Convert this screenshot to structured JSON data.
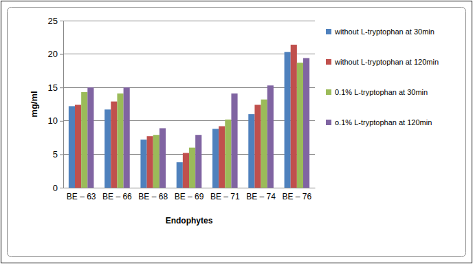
{
  "chart_data": {
    "type": "bar",
    "x_label": "Endophytes",
    "y_label": "mg/ml",
    "categories": [
      "BE – 63",
      "BE – 66",
      "BE – 68",
      "BE – 69",
      "BE – 71",
      "BE – 74",
      "BE – 76"
    ],
    "series": [
      {
        "name": "without L-tryptophan at 30min",
        "color": "#4f81bd",
        "values": [
          12.2,
          11.7,
          7.2,
          3.8,
          8.8,
          11.0,
          20.3
        ]
      },
      {
        "name": "without L-tryptophan at 120min",
        "color": "#c0504d",
        "values": [
          12.4,
          12.9,
          7.7,
          5.2,
          9.2,
          12.4,
          21.4
        ]
      },
      {
        "name": "0.1% L-tryptophan at 30min",
        "color": "#9bbb59",
        "values": [
          14.3,
          14.1,
          7.9,
          6.0,
          10.2,
          13.2,
          18.7
        ]
      },
      {
        "name": "o.1% L-tryptophan at 120min",
        "color": "#8064a2",
        "values": [
          15.0,
          15.0,
          8.9,
          7.9,
          14.1,
          15.3,
          19.4
        ]
      }
    ],
    "ylim": [
      0,
      25
    ],
    "yticks": [
      0,
      5,
      10,
      15,
      20,
      25
    ],
    "grid": true,
    "legend": "right"
  }
}
